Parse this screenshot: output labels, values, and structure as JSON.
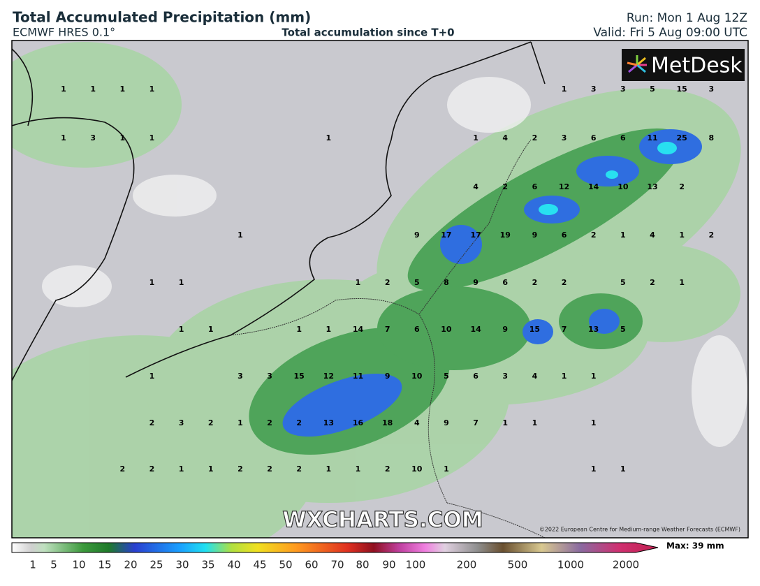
{
  "header": {
    "title": "Total Accumulated Precipitation (mm)",
    "model": "ECMWF HRES 0.1°",
    "subtitle": "Total accumulation since T+0",
    "run": "Run: Mon 1 Aug 12Z",
    "valid": "Valid: Fri 5 Aug 09:00 UTC"
  },
  "logo": "MetDesk",
  "watermark": "WXCHARTS.COM",
  "copyright": "©2022 European Centre for Medium-range Weather Forecasts (ECMWF)",
  "map_labels": [
    [
      1,
      1,
      1,
      1,
      null,
      null,
      null,
      null,
      null,
      null,
      null,
      null,
      null,
      null,
      null,
      null,
      null,
      1,
      3,
      3,
      5,
      15,
      3
    ],
    [
      1,
      3,
      1,
      1,
      null,
      null,
      null,
      null,
      null,
      1,
      null,
      null,
      null,
      null,
      1,
      4,
      2,
      3,
      6,
      6,
      11,
      25,
      8
    ],
    [
      null,
      null,
      null,
      null,
      null,
      null,
      null,
      null,
      null,
      null,
      null,
      null,
      null,
      null,
      4,
      2,
      6,
      12,
      14,
      10,
      13,
      2,
      null
    ],
    [
      null,
      null,
      null,
      null,
      null,
      null,
      1,
      null,
      null,
      null,
      null,
      null,
      9,
      17,
      17,
      19,
      9,
      6,
      2,
      1,
      4,
      1,
      2
    ],
    [
      null,
      null,
      null,
      1,
      1,
      null,
      null,
      null,
      null,
      null,
      1,
      2,
      5,
      8,
      9,
      6,
      2,
      2,
      null,
      5,
      2,
      1,
      null
    ],
    [
      null,
      null,
      null,
      null,
      1,
      1,
      null,
      null,
      1,
      1,
      14,
      7,
      6,
      10,
      14,
      9,
      15,
      7,
      13,
      5,
      null,
      null,
      null
    ],
    [
      null,
      null,
      null,
      1,
      null,
      null,
      3,
      3,
      15,
      12,
      11,
      9,
      10,
      5,
      6,
      3,
      4,
      1,
      1,
      null,
      null,
      null,
      null
    ],
    [
      null,
      null,
      null,
      2,
      3,
      2,
      1,
      2,
      2,
      13,
      16,
      18,
      4,
      9,
      7,
      1,
      1,
      null,
      1,
      null,
      null,
      null,
      null
    ],
    [
      null,
      null,
      2,
      2,
      1,
      1,
      2,
      2,
      2,
      1,
      1,
      2,
      10,
      1,
      null,
      null,
      null,
      null,
      1,
      1,
      null,
      null,
      null
    ]
  ],
  "colorbar": {
    "ticks": [
      1,
      5,
      10,
      15,
      20,
      25,
      30,
      35,
      40,
      45,
      50,
      60,
      70,
      80,
      90,
      100,
      200,
      500,
      1000,
      2000
    ],
    "max": "Max: 39 mm"
  }
}
